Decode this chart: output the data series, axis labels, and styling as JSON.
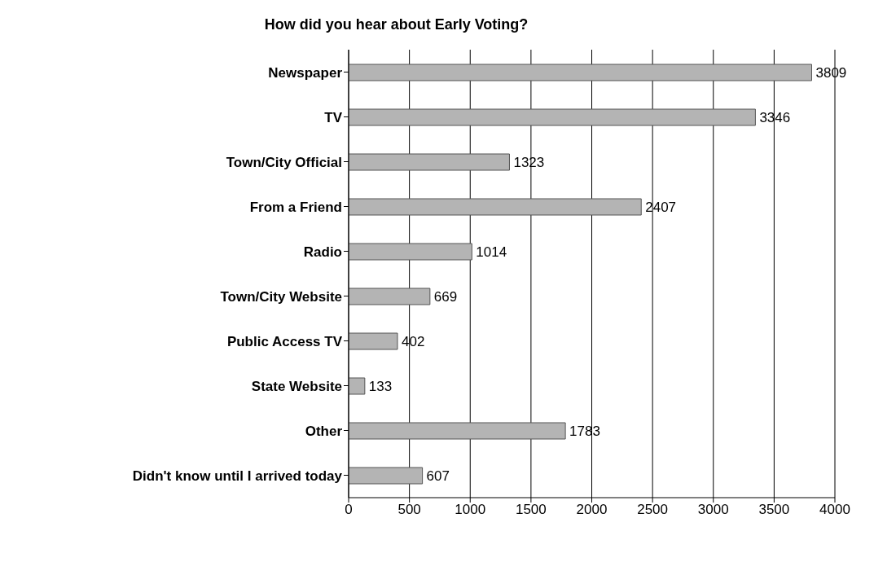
{
  "chart_data": {
    "type": "bar",
    "orientation": "horizontal",
    "title": "How did you hear about Early Voting?",
    "categories": [
      "Newspaper",
      "TV",
      "Town/City Official",
      "From a Friend",
      "Radio",
      "Town/City Website",
      "Public Access TV",
      "State Website",
      "Other",
      "Didn't know until I arrived today"
    ],
    "values": [
      3809,
      3346,
      1323,
      2407,
      1014,
      669,
      402,
      133,
      1783,
      607
    ],
    "color": "#b4b4b4",
    "xlim": [
      0,
      4000
    ],
    "xticks": [
      0,
      500,
      1000,
      1500,
      2000,
      2500,
      3000,
      3500,
      4000
    ],
    "grid": "x",
    "data_labels": true
  }
}
